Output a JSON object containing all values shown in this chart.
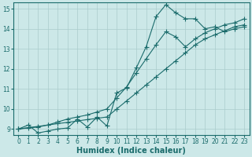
{
  "xlabel": "Humidex (Indice chaleur)",
  "ylabel": "",
  "xlim": [
    -0.5,
    23.5
  ],
  "ylim": [
    8.7,
    15.3
  ],
  "xticks": [
    0,
    1,
    2,
    3,
    4,
    5,
    6,
    7,
    8,
    9,
    10,
    11,
    12,
    13,
    14,
    15,
    16,
    17,
    18,
    19,
    20,
    21,
    22,
    23
  ],
  "yticks": [
    9,
    10,
    11,
    12,
    13,
    14,
    15
  ],
  "bg_color": "#cce8e8",
  "grid_color": "#aacccc",
  "line_color": "#1a6b6b",
  "line1_x": [
    0,
    1,
    2,
    3,
    4,
    5,
    6,
    7,
    8,
    9,
    10,
    11,
    12,
    13,
    14,
    15,
    16,
    17,
    18,
    19,
    20,
    21,
    22,
    23
  ],
  "line1_y": [
    9.0,
    9.2,
    8.8,
    8.9,
    9.0,
    9.05,
    9.5,
    9.1,
    9.6,
    9.15,
    10.8,
    11.05,
    12.05,
    13.1,
    14.6,
    15.2,
    14.8,
    14.5,
    14.5,
    14.0,
    14.1,
    13.85,
    14.0,
    14.1
  ],
  "line2_x": [
    0,
    2,
    3,
    4,
    5,
    6,
    7,
    8,
    9,
    10,
    11,
    12,
    13,
    14,
    15,
    16,
    17,
    18,
    19,
    20,
    21,
    22,
    23
  ],
  "line2_y": [
    9.0,
    9.1,
    9.2,
    9.35,
    9.5,
    9.6,
    9.7,
    9.85,
    10.0,
    10.55,
    11.1,
    11.8,
    12.5,
    13.2,
    13.85,
    13.6,
    13.1,
    13.5,
    13.8,
    14.0,
    14.2,
    14.3,
    14.5
  ],
  "line3_x": [
    0,
    1,
    2,
    3,
    4,
    5,
    6,
    7,
    8,
    9,
    10,
    11,
    12,
    13,
    14,
    15,
    16,
    17,
    18,
    19,
    20,
    21,
    22,
    23
  ],
  "line3_y": [
    9.0,
    9.07,
    9.13,
    9.2,
    9.27,
    9.33,
    9.4,
    9.47,
    9.53,
    9.6,
    10.0,
    10.4,
    10.8,
    11.2,
    11.6,
    12.0,
    12.4,
    12.8,
    13.2,
    13.5,
    13.7,
    13.9,
    14.1,
    14.2
  ],
  "marker": "D",
  "markersize": 2.0,
  "linewidth": 0.8,
  "tick_fontsize": 5.5,
  "xlabel_fontsize": 7
}
